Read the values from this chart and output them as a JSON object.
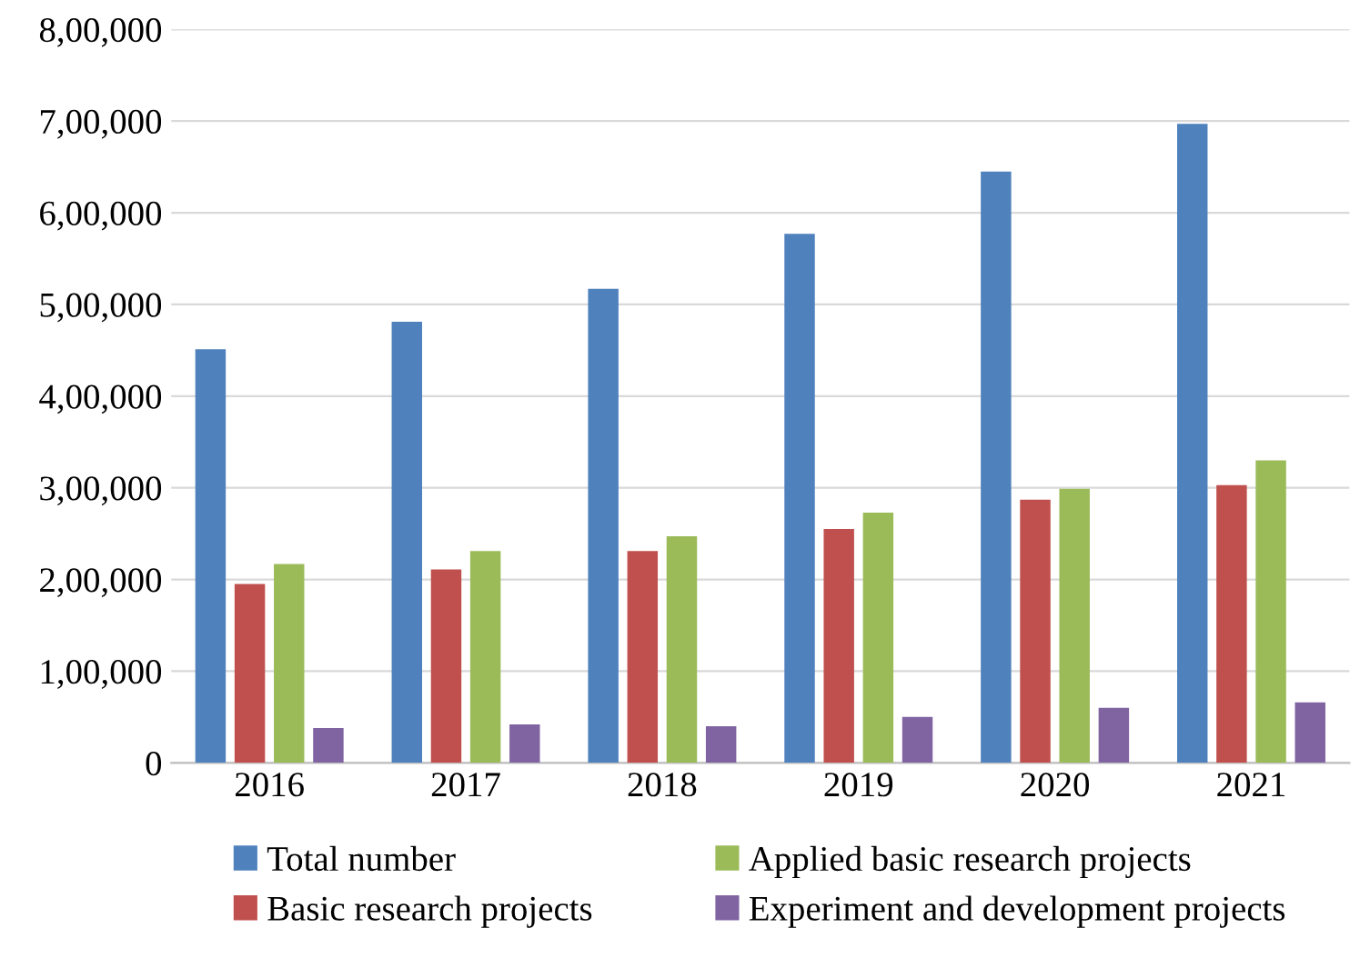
{
  "chart_data": {
    "type": "bar",
    "categories": [
      "2016",
      "2017",
      "2018",
      "2019",
      "2020",
      "2021"
    ],
    "series": [
      {
        "name": "Total number",
        "color": "#4f81bd",
        "values": [
          451000,
          481000,
          517000,
          577000,
          645000,
          697000
        ]
      },
      {
        "name": "Basic research projects",
        "color": "#c0504d",
        "values": [
          195000,
          211000,
          231000,
          255000,
          287000,
          303000
        ]
      },
      {
        "name": "Applied basic research projects",
        "color": "#9bbb59",
        "values": [
          217000,
          231000,
          247000,
          273000,
          299000,
          330000
        ]
      },
      {
        "name": "Experiment and development projects",
        "color": "#8064a2",
        "values": [
          38000,
          42000,
          40000,
          50000,
          60000,
          66000
        ]
      }
    ],
    "ylim": [
      0,
      800000
    ],
    "yticks": [
      0,
      {
        "value": 100000,
        "label": "1,00,000"
      },
      {
        "value": 200000,
        "label": "2,00,000"
      },
      {
        "value": 300000,
        "label": "3,00,000"
      },
      {
        "value": 400000,
        "label": "4,00,000"
      },
      {
        "value": 500000,
        "label": "5,00,000"
      },
      {
        "value": 600000,
        "label": "6,00,000"
      },
      {
        "value": 700000,
        "label": "7,00,000"
      },
      {
        "value": 800000,
        "label": "8,00,000"
      }
    ],
    "grid": "y",
    "legend": "bottom"
  }
}
